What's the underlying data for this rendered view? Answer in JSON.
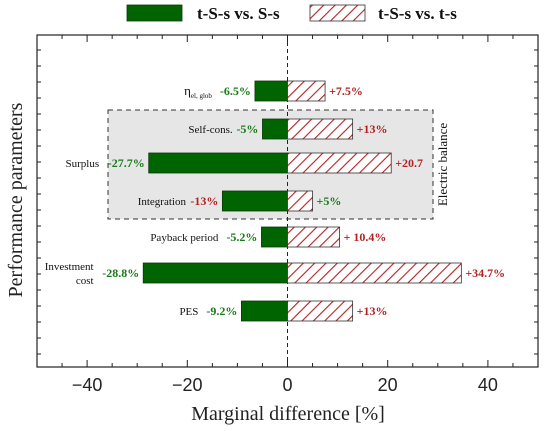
{
  "chart_data": {
    "type": "bar",
    "orientation": "horizontal",
    "categories": [
      "η_el, glob",
      "Self-cons.",
      "Surplus",
      "Integration",
      "Payback period",
      "Investment cost",
      "PES"
    ],
    "category_labels": [
      {
        "main": "η",
        "sub": "el, glob"
      },
      {
        "lines": [
          "Self-cons."
        ]
      },
      {
        "lines": [
          "Surplus"
        ]
      },
      {
        "lines": [
          "Integration"
        ]
      },
      {
        "lines": [
          "Payback period"
        ]
      },
      {
        "lines": [
          "Investment",
          "cost"
        ]
      },
      {
        "lines": [
          "PES"
        ]
      }
    ],
    "series": [
      {
        "name": "t-S-s vs. S-s",
        "color": "#006400",
        "fill": "solid",
        "values": [
          -6.5,
          -5,
          -27.7,
          -13,
          -5.2,
          -28.8,
          -9.2
        ],
        "labels": [
          "-6.5%",
          "-5%",
          "-27.7%",
          "-13%",
          "-5.2%",
          "-28.8%",
          "-9.2%"
        ],
        "label_colors": [
          "#1a7a1a",
          "#1a7a1a",
          "#1a7a1a",
          "#b22222",
          "#1a7a1a",
          "#1a7a1a",
          "#1a7a1a"
        ]
      },
      {
        "name": "t-S-s vs. t-s",
        "color": "#b22222",
        "fill": "hatched",
        "values": [
          7.5,
          13,
          20.7,
          5,
          10.4,
          34.7,
          13
        ],
        "labels": [
          "+7.5%",
          "+13%",
          "+20.7",
          "+5%",
          "+ 10.4%",
          "+34.7%",
          "+13%"
        ],
        "label_colors": [
          "#b22222",
          "#b22222",
          "#b22222",
          "#1a7a1a",
          "#b22222",
          "#b22222",
          "#b22222"
        ]
      }
    ],
    "xlabel": "Marginal difference [%]",
    "ylabel": "Performance parameters",
    "xlim": [
      -50,
      50
    ],
    "xticks": [
      -40,
      -20,
      0,
      20,
      40
    ],
    "xtick_labels": [
      "−40",
      "−20",
      "0",
      "20",
      "40"
    ],
    "legend_position": "top",
    "grid": false,
    "group_box": {
      "label": "Electric balance",
      "categories": [
        "Self-cons.",
        "Surplus",
        "Integration"
      ]
    }
  }
}
